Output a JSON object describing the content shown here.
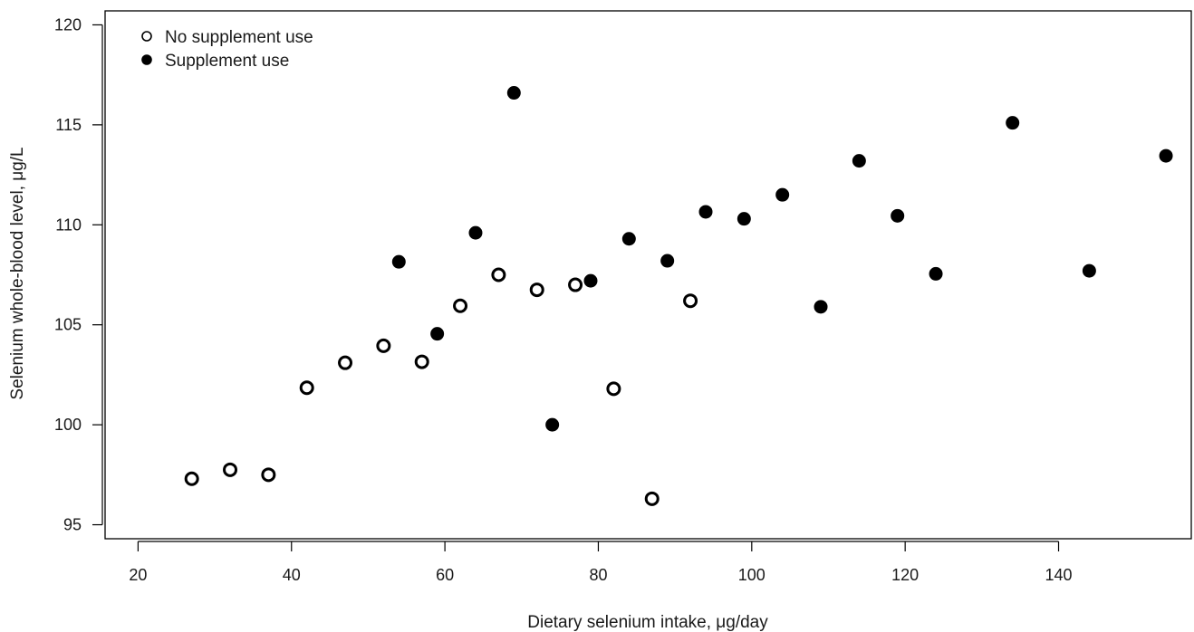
{
  "chart_data": {
    "type": "scatter",
    "title": "",
    "xlabel": "Dietary selenium intake, μg/day",
    "ylabel": "Selenium whole-blood level, μg/L",
    "xlim": [
      15.7,
      157.3
    ],
    "ylim": [
      94.3,
      120.7
    ],
    "xticks": [
      20,
      40,
      60,
      80,
      100,
      120,
      140
    ],
    "yticks": [
      95,
      100,
      105,
      110,
      115,
      120
    ],
    "grid": false,
    "legend_position": "top-left",
    "series": [
      {
        "name": "No supplement use",
        "marker": "open-circle",
        "color": "#000000",
        "points": [
          [
            27,
            97.3
          ],
          [
            32,
            97.75
          ],
          [
            37,
            97.5
          ],
          [
            42,
            101.85
          ],
          [
            47,
            103.1
          ],
          [
            52,
            103.95
          ],
          [
            57,
            103.15
          ],
          [
            62,
            105.95
          ],
          [
            67,
            107.5
          ],
          [
            72,
            106.75
          ],
          [
            77,
            107.0
          ],
          [
            82,
            101.8
          ],
          [
            87,
            96.3
          ],
          [
            92,
            106.2
          ]
        ]
      },
      {
        "name": "Supplement use",
        "marker": "filled-circle",
        "color": "#000000",
        "points": [
          [
            54,
            108.15
          ],
          [
            59,
            104.55
          ],
          [
            64,
            109.6
          ],
          [
            69,
            116.6
          ],
          [
            74,
            100.0
          ],
          [
            79,
            107.2
          ],
          [
            84,
            109.3
          ],
          [
            89,
            108.2
          ],
          [
            94,
            110.65
          ],
          [
            99,
            110.3
          ],
          [
            104,
            111.5
          ],
          [
            109,
            105.9
          ],
          [
            114,
            113.2
          ],
          [
            119,
            110.45
          ],
          [
            124,
            107.55
          ],
          [
            134,
            115.1
          ],
          [
            144,
            107.7
          ],
          [
            154,
            113.45
          ]
        ]
      }
    ]
  }
}
